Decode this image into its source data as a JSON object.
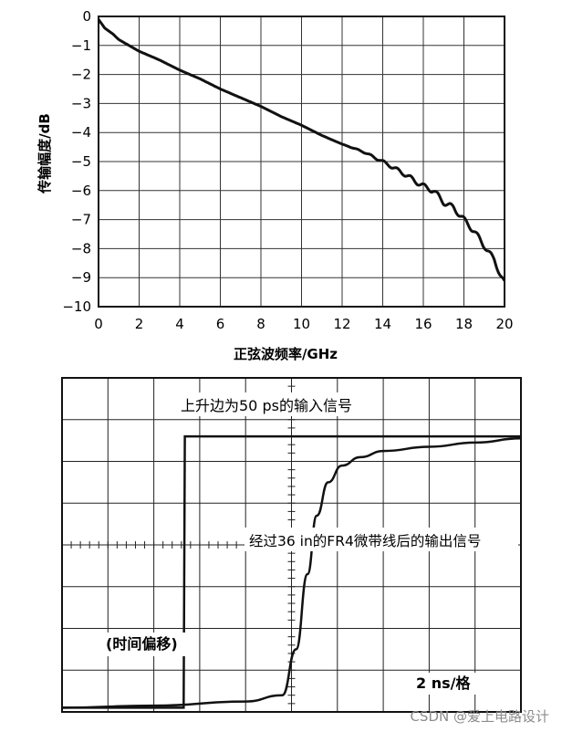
{
  "chart_data": [
    {
      "type": "line",
      "title": "",
      "xlabel": "正弦波频率/GHz",
      "ylabel": "传输幅度/dB",
      "xlim": [
        0,
        20
      ],
      "ylim": [
        -10,
        0
      ],
      "grid": true,
      "x_ticks": [
        "0",
        "2",
        "4",
        "6",
        "8",
        "10",
        "12",
        "14",
        "16",
        "18",
        "20"
      ],
      "y_ticks": [
        "0",
        "−1",
        "−2",
        "−3",
        "−4",
        "−5",
        "−6",
        "−7",
        "−8",
        "−9",
        "−10"
      ],
      "series": [
        {
          "x": [
            0,
            0.3,
            0.7,
            1,
            1.5,
            2,
            3,
            4,
            5,
            6,
            7,
            8,
            9,
            10,
            11,
            12,
            13,
            14,
            15,
            16,
            16.5,
            17,
            17.5,
            18,
            18.5,
            19,
            19.5,
            19.8,
            20
          ],
          "y": [
            -0.1,
            -0.4,
            -0.6,
            -0.8,
            -1.0,
            -1.2,
            -1.5,
            -1.85,
            -2.15,
            -2.5,
            -2.8,
            -3.1,
            -3.45,
            -3.75,
            -4.1,
            -4.4,
            -4.65,
            -5.0,
            -5.4,
            -5.85,
            -6.0,
            -6.4,
            -6.6,
            -7.0,
            -7.4,
            -7.9,
            -8.4,
            -8.9,
            -9.2
          ]
        }
      ]
    },
    {
      "type": "line",
      "title": "",
      "xlabel": "",
      "ylabel": "",
      "grid": true,
      "xlim": [
        0,
        20
      ],
      "ylim": [
        0,
        8
      ],
      "annotations": {
        "input_signal": "上升边为50 ps的输入信号",
        "output_signal": "经过36 in的FR4微带线后的输出信号",
        "time_offset": "(时间偏移)",
        "time_scale": "2 ns/格"
      },
      "series": [
        {
          "x": [
            0,
            5.3,
            5.35,
            20
          ],
          "y": [
            0.1,
            0.1,
            6.6,
            6.6
          ]
        },
        {
          "x": [
            0,
            4,
            8,
            9.6,
            10.2,
            10.7,
            11.1,
            11.6,
            12.2,
            13,
            14,
            16,
            18,
            20
          ],
          "y": [
            0.1,
            0.15,
            0.25,
            0.4,
            1.5,
            3.3,
            4.7,
            5.5,
            5.9,
            6.1,
            6.25,
            6.35,
            6.45,
            6.55
          ]
        }
      ]
    }
  ],
  "watermark": "CSDN @爱上电路设计"
}
